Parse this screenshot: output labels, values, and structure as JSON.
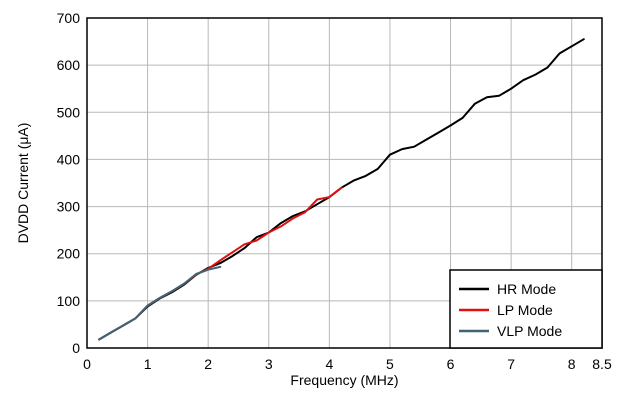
{
  "chart_data": {
    "type": "line",
    "title": "",
    "xlabel": "Frequency (MHz)",
    "ylabel": "DVDD Current (μA)",
    "xlim": [
      0,
      8.5
    ],
    "ylim": [
      0,
      700
    ],
    "xticks": [
      0,
      1,
      2,
      3,
      4,
      5,
      6,
      7,
      8,
      8.5
    ],
    "xtick_labels": [
      "0",
      "1",
      "2",
      "3",
      "4",
      "5",
      "6",
      "7",
      "8",
      "8.5"
    ],
    "yticks": [
      0,
      100,
      200,
      300,
      400,
      500,
      600,
      700
    ],
    "ytick_labels": [
      "0",
      "100",
      "200",
      "300",
      "400",
      "500",
      "600",
      "700"
    ],
    "grid": true,
    "legend_position": "bottom-right",
    "series": [
      {
        "name": "HR Mode",
        "color": "#000000",
        "x": [
          0.2,
          0.4,
          0.6,
          0.8,
          1.0,
          1.2,
          1.4,
          1.6,
          1.8,
          2.0,
          2.2,
          2.4,
          2.6,
          2.8,
          3.0,
          3.2,
          3.4,
          3.6,
          3.8,
          4.0,
          4.2,
          4.4,
          4.6,
          4.8,
          5.0,
          5.2,
          5.4,
          5.6,
          5.8,
          6.0,
          6.2,
          6.4,
          6.6,
          6.8,
          7.0,
          7.2,
          7.4,
          7.6,
          7.8,
          8.0,
          8.2
        ],
        "y": [
          18,
          33,
          48,
          63,
          88,
          105,
          118,
          134,
          155,
          170,
          180,
          195,
          212,
          235,
          245,
          265,
          280,
          290,
          305,
          320,
          340,
          355,
          365,
          380,
          410,
          422,
          427,
          442,
          457,
          472,
          488,
          518,
          532,
          535,
          550,
          568,
          580,
          595,
          625,
          640,
          655
        ]
      },
      {
        "name": "LP Mode",
        "color": "#e01010",
        "x": [
          0.2,
          0.4,
          0.6,
          0.8,
          1.0,
          1.2,
          1.4,
          1.6,
          1.8,
          2.0,
          2.2,
          2.4,
          2.6,
          2.8,
          3.0,
          3.2,
          3.4,
          3.6,
          3.8,
          4.0,
          4.2
        ],
        "y": [
          18,
          33,
          48,
          63,
          90,
          106,
          120,
          136,
          156,
          168,
          186,
          203,
          220,
          228,
          245,
          258,
          275,
          288,
          315,
          320,
          340
        ]
      },
      {
        "name": "VLP Mode",
        "color": "#3d6575",
        "x": [
          0.2,
          0.4,
          0.6,
          0.8,
          1.0,
          1.2,
          1.4,
          1.6,
          1.8,
          2.0,
          2.2
        ],
        "y": [
          18,
          33,
          48,
          63,
          90,
          106,
          120,
          136,
          157,
          166,
          172
        ]
      }
    ]
  }
}
